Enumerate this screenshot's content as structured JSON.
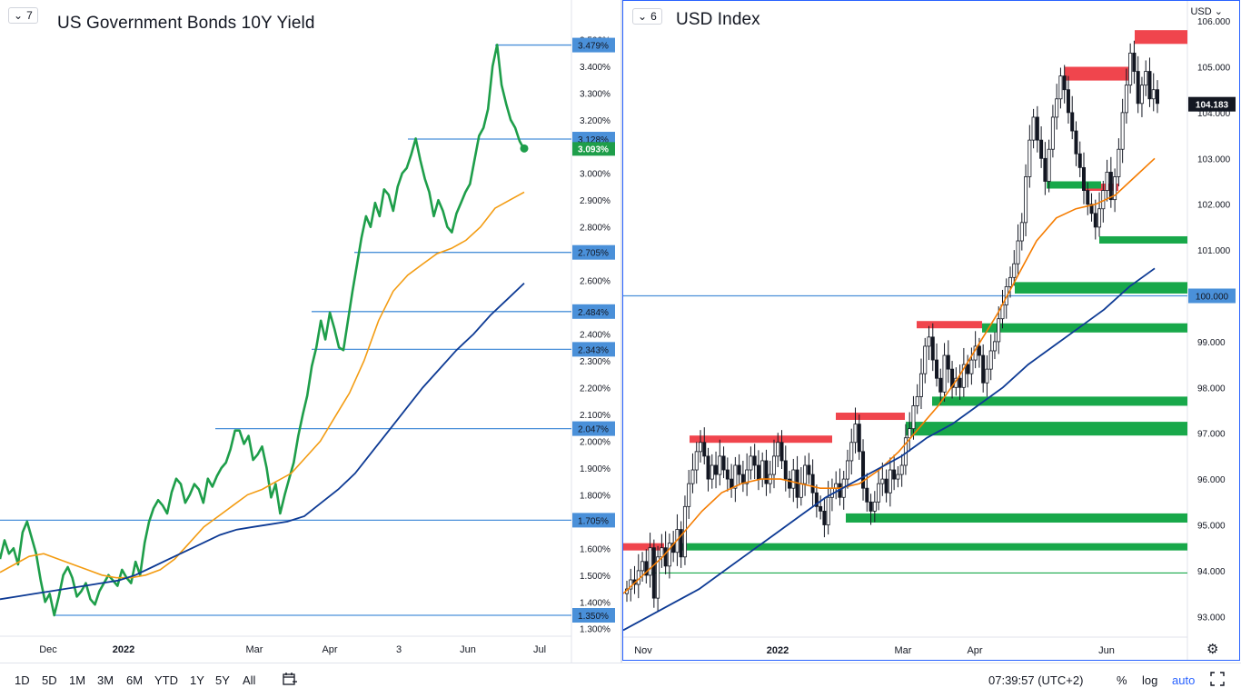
{
  "left": {
    "pane_badge": "7",
    "title": "US Government Bonds 10Y Yield",
    "y_ticks": [
      "1.300%",
      "1.400%",
      "1.500%",
      "1.600%",
      "1.700%",
      "1.800%",
      "1.900%",
      "2.000%",
      "2.100%",
      "2.200%",
      "2.300%",
      "2.400%",
      "2.500%",
      "2.600%",
      "2.700%",
      "2.800%",
      "2.900%",
      "3.000%",
      "3.100%",
      "3.200%",
      "3.300%",
      "3.400%",
      "3.500%"
    ],
    "x_ticks": [
      "Dec",
      "2022",
      "Mar",
      "Apr",
      "3",
      "Jun",
      "Jul"
    ],
    "level_labels": [
      "3.479%",
      "3.128%",
      "2.705%",
      "2.484%",
      "2.343%",
      "2.047%",
      "1.705%",
      "1.350%"
    ],
    "last_label": "3.093%"
  },
  "right": {
    "pane_badge": "6",
    "title": "USD Index",
    "currency": "USD",
    "y_ticks": [
      "93.000",
      "94.000",
      "95.000",
      "96.000",
      "97.000",
      "98.000",
      "99.000",
      "100.000",
      "101.000",
      "102.000",
      "103.000",
      "104.000",
      "105.000",
      "106.000"
    ],
    "x_ticks": [
      "Nov",
      "2022",
      "Mar",
      "Apr",
      "Jun"
    ],
    "level_label": "100.000",
    "last_label": "104.183"
  },
  "bottom": {
    "ranges": [
      "1D",
      "5D",
      "1M",
      "3M",
      "6M",
      "YTD",
      "1Y",
      "5Y",
      "All"
    ],
    "time": "07:39:57 (UTC+2)",
    "percent": "%",
    "log": "log",
    "auto": "auto"
  },
  "colors": {
    "price_line": "#1e9e4a",
    "ma_fast": "#f39c12",
    "ma_slow": "#0d3a94",
    "level": "#4a90d9",
    "resistance": "#f0454d",
    "support": "#18a84a"
  },
  "chart_data": [
    {
      "type": "line",
      "title": "US Government Bonds 10Y Yield",
      "ylim": [
        1.25,
        3.5
      ],
      "x_ticks": [
        "Dec",
        "2022",
        "Mar",
        "Apr",
        "3",
        "Jun",
        "Jul"
      ],
      "series": [
        {
          "values": [
            1.56,
            1.63,
            1.58,
            1.6,
            1.54,
            1.66,
            1.7,
            1.64,
            1.58,
            1.48,
            1.4,
            1.43,
            1.35,
            1.42,
            1.5,
            1.53,
            1.49,
            1.42,
            1.44,
            1.47,
            1.41,
            1.39,
            1.44,
            1.47,
            1.5,
            1.48,
            1.46,
            1.52,
            1.49,
            1.47,
            1.55,
            1.5,
            1.62,
            1.7,
            1.75,
            1.78,
            1.76,
            1.73,
            1.81,
            1.86,
            1.84,
            1.77,
            1.8,
            1.84,
            1.82,
            1.77,
            1.86,
            1.83,
            1.87,
            1.9,
            1.92,
            1.97,
            2.04,
            2.04,
            1.99,
            2.02,
            1.93,
            1.95,
            1.98,
            1.9,
            1.79,
            1.84,
            1.73,
            1.8,
            1.86,
            1.92,
            2.02,
            2.1,
            2.17,
            2.28,
            2.35,
            2.45,
            2.38,
            2.48,
            2.42,
            2.35,
            2.34,
            2.45,
            2.56,
            2.66,
            2.76,
            2.84,
            2.8,
            2.89,
            2.84,
            2.94,
            2.92,
            2.86,
            2.95,
            3.0,
            3.02,
            3.07,
            3.13,
            3.05,
            2.98,
            2.93,
            2.84,
            2.9,
            2.86,
            2.8,
            2.78,
            2.85,
            2.89,
            2.93,
            2.96,
            3.05,
            3.14,
            3.17,
            3.24,
            3.4,
            3.48,
            3.33,
            3.26,
            3.2,
            3.17,
            3.12,
            3.09
          ]
        },
        {
          "values": [
            1.51,
            1.54,
            1.57,
            1.58,
            1.56,
            1.54,
            1.52,
            1.5,
            1.49,
            1.49,
            1.5,
            1.52,
            1.56,
            1.62,
            1.68,
            1.72,
            1.76,
            1.8,
            1.82,
            1.85,
            1.88,
            1.94,
            2.0,
            2.09,
            2.18,
            2.3,
            2.45,
            2.56,
            2.62,
            2.66,
            2.7,
            2.72,
            2.75,
            2.8,
            2.87,
            2.9,
            2.93
          ]
        },
        {
          "values": [
            1.41,
            1.42,
            1.43,
            1.44,
            1.45,
            1.46,
            1.47,
            1.48,
            1.5,
            1.53,
            1.56,
            1.59,
            1.62,
            1.65,
            1.67,
            1.68,
            1.69,
            1.7,
            1.72,
            1.77,
            1.82,
            1.88,
            1.96,
            2.04,
            2.12,
            2.2,
            2.27,
            2.34,
            2.4,
            2.47,
            2.53,
            2.59
          ]
        }
      ],
      "levels": [
        3.479,
        3.128,
        2.705,
        2.484,
        2.343,
        2.047,
        1.705,
        1.35
      ],
      "last": 3.093
    },
    {
      "type": "candlestick",
      "title": "USD Index",
      "ylim": [
        92.7,
        106.4
      ],
      "x_ticks": [
        "Nov",
        "2022",
        "Mar",
        "Apr",
        "Jun"
      ],
      "closes": [
        93.6,
        93.8,
        93.7,
        94.0,
        94.2,
        93.9,
        94.5,
        93.4,
        94.3,
        94.5,
        94.1,
        94.6,
        94.4,
        94.9,
        94.3,
        95.4,
        95.9,
        96.2,
        96.6,
        96.8,
        96.5,
        96.0,
        96.3,
        96.1,
        96.5,
        96.2,
        96.0,
        95.8,
        96.3,
        96.1,
        95.9,
        96.2,
        96.5,
        96.3,
        96.0,
        96.4,
        95.9,
        96.1,
        96.5,
        96.8,
        96.4,
        96.0,
        95.8,
        96.2,
        95.6,
        95.9,
        96.3,
        96.1,
        95.7,
        95.4,
        95.3,
        95.0,
        95.6,
        95.8,
        95.9,
        95.6,
        96.0,
        96.4,
        96.8,
        97.2,
        96.6,
        95.8,
        95.5,
        95.3,
        95.5,
        95.9,
        96.0,
        95.7,
        96.2,
        96.0,
        96.1,
        96.3,
        96.9,
        97.1,
        97.6,
        97.8,
        98.3,
        98.9,
        99.1,
        98.6,
        98.2,
        97.9,
        98.7,
        98.4,
        98.0,
        98.2,
        98.0,
        98.5,
        98.3,
        98.6,
        98.9,
        98.7,
        98.1,
        98.4,
        98.8,
        99.0,
        99.5,
        99.8,
        100.2,
        100.4,
        100.7,
        101.2,
        101.6,
        102.6,
        103.4,
        103.9,
        103.4,
        103.0,
        102.5,
        103.2,
        103.9,
        104.3,
        104.8,
        104.5,
        104.0,
        103.6,
        103.1,
        102.8,
        102.3,
        102.0,
        101.8,
        101.5,
        101.9,
        102.3,
        102.7,
        102.1,
        102.6,
        103.2,
        104.0,
        104.6,
        105.3,
        104.9,
        104.2,
        104.6,
        104.9,
        104.3,
        104.5,
        104.2
      ],
      "series": [
        {
          "values": [
            93.5,
            93.9,
            94.3,
            94.8,
            95.3,
            95.7,
            95.9,
            96.0,
            96.0,
            95.9,
            95.8,
            95.8,
            95.9,
            96.2,
            96.6,
            97.1,
            97.6,
            98.2,
            98.9,
            99.6,
            100.4,
            101.2,
            101.7,
            101.9,
            102.0,
            102.2,
            102.6,
            103.0
          ]
        },
        {
          "values": [
            92.7,
            93.0,
            93.3,
            93.6,
            94.0,
            94.4,
            94.8,
            95.2,
            95.6,
            95.9,
            96.2,
            96.5,
            96.9,
            97.2,
            97.6,
            98.0,
            98.5,
            98.9,
            99.3,
            99.7,
            100.2,
            100.6
          ]
        }
      ],
      "resistance_zones": [
        [
          94.5,
          94.6
        ],
        [
          96.8,
          96.95
        ],
        [
          97.3,
          97.45
        ],
        [
          99.3,
          99.45
        ],
        [
          102.3,
          102.45
        ],
        [
          104.7,
          105.0
        ],
        [
          105.5,
          105.8
        ]
      ],
      "support_zones": [
        [
          94.5,
          94.6
        ],
        [
          95.05,
          95.25
        ],
        [
          96.95,
          97.25
        ],
        [
          97.6,
          97.8
        ],
        [
          99.2,
          99.4
        ],
        [
          100.05,
          100.3
        ],
        [
          101.15,
          101.3
        ],
        [
          102.35,
          102.5
        ]
      ],
      "level": 100.0,
      "last": 104.183
    }
  ]
}
